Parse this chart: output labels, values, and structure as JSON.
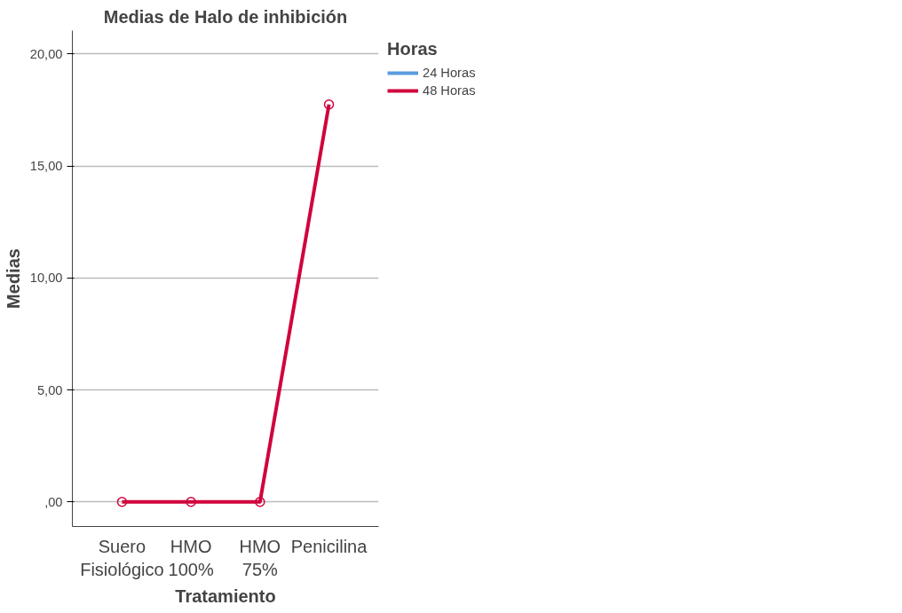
{
  "chart_data": {
    "type": "line",
    "title": "Medias de Halo de inhibición",
    "xlabel": "Tratamiento",
    "ylabel": "Medias",
    "legend_title": "Horas",
    "categories": [
      "Suero Fisiológico",
      "HMO 100%",
      "HMO 75%",
      "Penicilina"
    ],
    "series": [
      {
        "name": "24 Horas",
        "color": "#5b9bdf",
        "values": [
          null,
          null,
          null,
          null
        ]
      },
      {
        "name": "48 Horas",
        "color": "#d0043c",
        "values": [
          0,
          0,
          0,
          17.75
        ]
      }
    ],
    "ylim": [
      -1.1,
      21.05
    ],
    "yticks": [
      {
        "value": 0,
        "label": ",00"
      },
      {
        "value": 5,
        "label": "5,00"
      },
      {
        "value": 10,
        "label": "10,00"
      },
      {
        "value": 15,
        "label": "15,00"
      },
      {
        "value": 20,
        "label": "20,00"
      }
    ],
    "grid": "y",
    "legend": "top right",
    "marker": "circle",
    "line_style": "solid"
  }
}
